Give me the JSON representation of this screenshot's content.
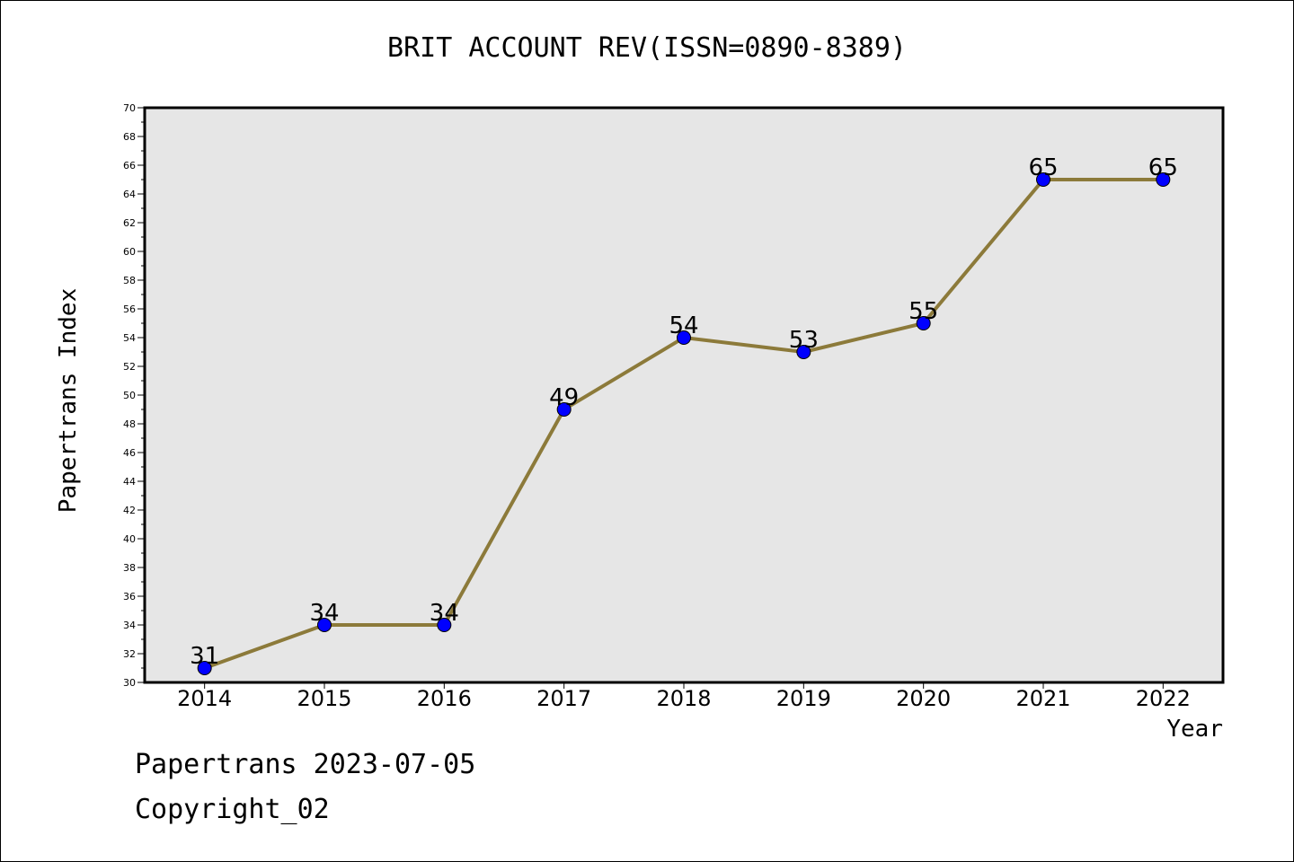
{
  "chart_data": {
    "type": "line",
    "title": "BRIT ACCOUNT REV(ISSN=0890-8389)",
    "xlabel": "Year",
    "ylabel": "Papertrans Index",
    "categories": [
      "2014",
      "2015",
      "2016",
      "2017",
      "2018",
      "2019",
      "2020",
      "2021",
      "2022"
    ],
    "values": [
      31,
      34,
      34,
      49,
      54,
      53,
      55,
      65,
      65
    ],
    "data_labels": [
      "31",
      "34",
      "34",
      "49",
      "54",
      "53",
      "55",
      "65",
      "65"
    ],
    "ylim": [
      30,
      70
    ],
    "y_major_step": 2,
    "y_ticks": [
      "30",
      "32",
      "34",
      "36",
      "38",
      "40",
      "42",
      "44",
      "46",
      "48",
      "50",
      "52",
      "54",
      "56",
      "58",
      "60",
      "62",
      "64",
      "66",
      "68",
      "70"
    ],
    "grid": false,
    "colors": {
      "line": "#8c7a3a",
      "marker": "#0000ff",
      "plot_background": "#e6e6e6",
      "axes": "#000000"
    }
  },
  "footer": {
    "date_line": "Papertrans 2023-07-05",
    "copyright_line": "Copyright_02"
  }
}
